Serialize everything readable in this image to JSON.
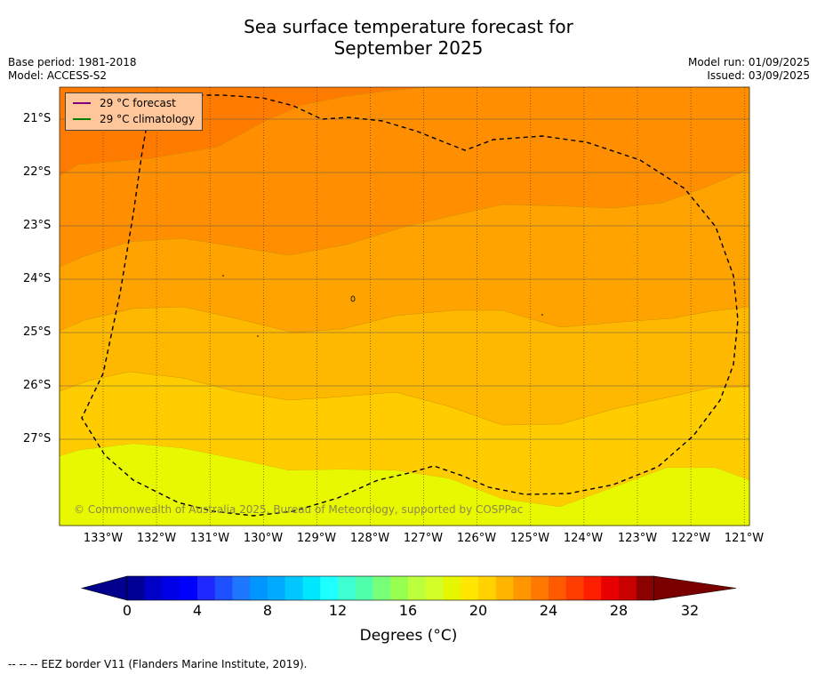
{
  "header": {
    "title_line1": "Sea surface temperature forecast for",
    "title_line2": "September 2025",
    "base_period": "Base period: 1981-2018",
    "model": "Model: ACCESS-S2",
    "model_run": "Model run: 01/09/2025",
    "issued": "Issued: 03/09/2025"
  },
  "map": {
    "lat_ticks": [
      "21°S",
      "22°S",
      "23°S",
      "24°S",
      "25°S",
      "26°S",
      "27°S"
    ],
    "lon_ticks": [
      "133°W",
      "132°W",
      "131°W",
      "130°W",
      "129°W",
      "128°W",
      "127°W",
      "126°W",
      "125°W",
      "124°W",
      "123°W",
      "122°W",
      "121°W"
    ],
    "copyright": "© Commonwealth of Australia 2025, Bureau of Meteorology, supported by COSPPac",
    "legend": [
      {
        "label": "29 °C  forecast",
        "color": "#800080"
      },
      {
        "label": "29 °C  climatology",
        "color": "#008000"
      }
    ],
    "band_colors_north_to_south": [
      "#ff7b00",
      "#ff8f00",
      "#ffa300",
      "#ffb800",
      "#ffcc00",
      "#ffe400",
      "#e8f800"
    ]
  },
  "colorbar": {
    "labels": [
      "0",
      "4",
      "8",
      "12",
      "16",
      "20",
      "24",
      "28",
      "32"
    ],
    "title": "Degrees (°C)",
    "colors": [
      "#000096",
      "#0000c8",
      "#0000e6",
      "#0000ff",
      "#1e28ff",
      "#1e50ff",
      "#1e78ff",
      "#0096ff",
      "#00aaff",
      "#00c8ff",
      "#00e6ff",
      "#1effff",
      "#3cffd2",
      "#50ffaa",
      "#78ff78",
      "#96ff50",
      "#bcff3c",
      "#d2ff28",
      "#e6f500",
      "#ffe600",
      "#ffd200",
      "#ffb400",
      "#ff9600",
      "#ff7800",
      "#ff5a00",
      "#ff3c00",
      "#ff1e00",
      "#e60000",
      "#c80000",
      "#8c0000"
    ]
  },
  "footnote": "--  --  -- EEZ border V11 (Flanders Marine Institute, 2019)."
}
